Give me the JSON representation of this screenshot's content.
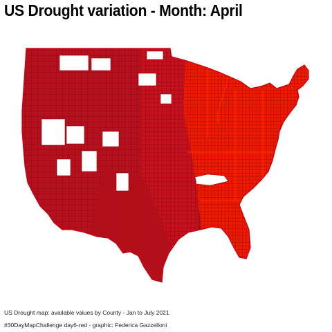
{
  "title": "US Drought variation - Month: April",
  "caption": "US Drought map: available values by County - Jan to July 2021",
  "credit": "#30DayMapChallenge day6-red - graphic: Federica Gazzelloni",
  "map": {
    "region": "Contiguous United States",
    "unit": "county",
    "colors": {
      "west_fill": "#b5101d",
      "central_fill": "#c4111e",
      "east_fill": "#ee1a00",
      "county_border": "#550000",
      "missing_fill": "#ffffff",
      "background": "#ffffff"
    }
  }
}
